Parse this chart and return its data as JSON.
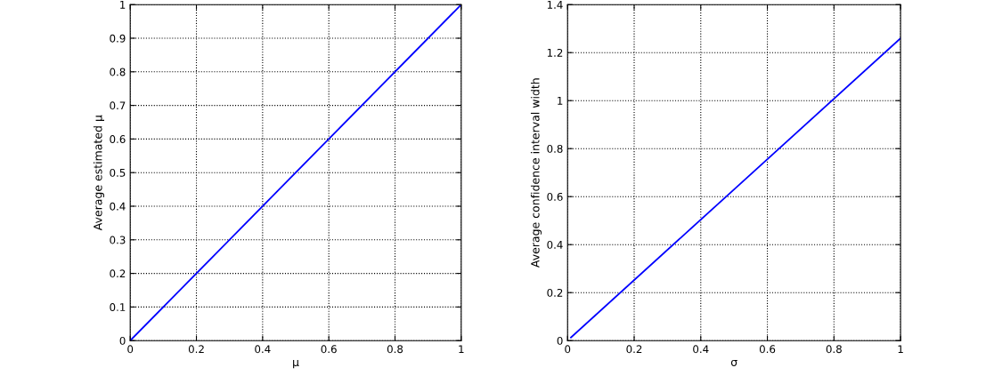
{
  "chart_data": [
    {
      "type": "line",
      "xlabel": "μ",
      "ylabel": "Average estimated μ",
      "x": [
        0,
        0.5,
        1
      ],
      "series": [
        {
          "color": "#0000ff",
          "values": [
            0,
            0.5,
            1
          ]
        }
      ],
      "xlim": [
        0,
        1
      ],
      "ylim": [
        0,
        1
      ],
      "xticks": [
        0,
        0.2,
        0.4,
        0.6,
        0.8,
        1
      ],
      "yticks": [
        0,
        0.1,
        0.2,
        0.3,
        0.4,
        0.5,
        0.6,
        0.7,
        0.8,
        0.9,
        1
      ],
      "grid": true,
      "line_style": "solid",
      "marker": "none"
    },
    {
      "type": "line",
      "xlabel": "σ",
      "ylabel": "Average confidence interval width",
      "x": [
        0.01,
        0.5,
        1
      ],
      "series": [
        {
          "color": "#0000ff",
          "values": [
            0.013,
            0.63,
            1.26
          ]
        }
      ],
      "xlim": [
        0,
        1
      ],
      "ylim": [
        0,
        1.4
      ],
      "xticks": [
        0,
        0.2,
        0.4,
        0.6,
        0.8,
        1
      ],
      "yticks": [
        0,
        0.2,
        0.4,
        0.6,
        0.8,
        1,
        1.2,
        1.4
      ],
      "grid": true,
      "line_style": "solid",
      "marker": "none"
    }
  ]
}
